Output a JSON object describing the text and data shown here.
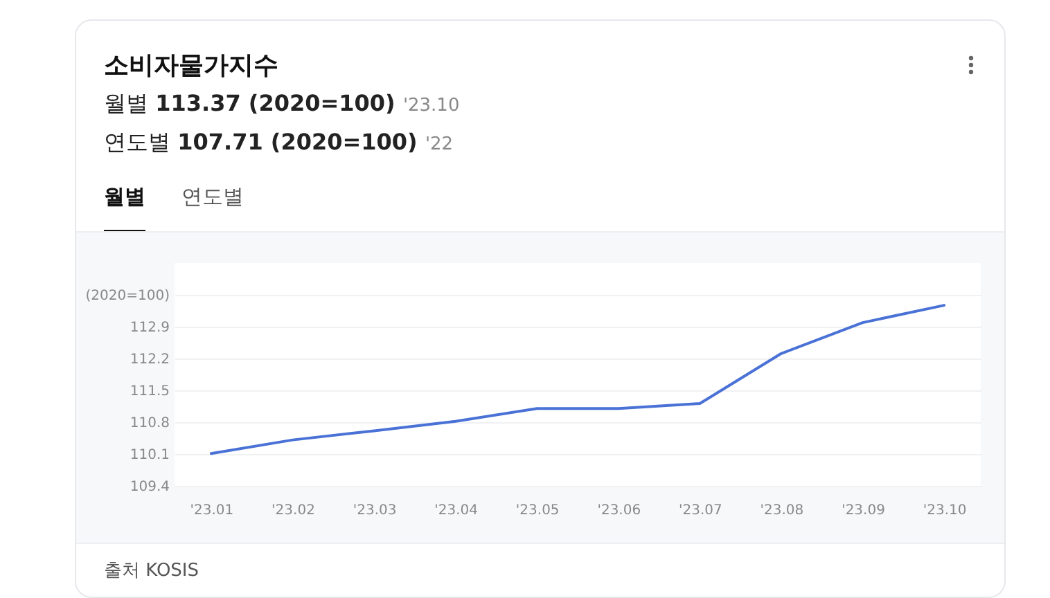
{
  "chart_data": {
    "type": "line",
    "title": "소비자물가지수",
    "subtitle": "월별 113.37 (2020=100) '23.10",
    "annotations": [
      "연도별 107.71 (2020=100) '22",
      "월별",
      "연도별",
      "출처 KOSIS"
    ],
    "categories": [
      "'23.01",
      "'23.02",
      "'23.03",
      "'23.04",
      "'23.05",
      "'23.06",
      "'23.07",
      "'23.08",
      "'23.09",
      "'23.10"
    ],
    "series": [
      {
        "color": "#4a72d6",
        "values": [
          110.11,
          110.41,
          110.61,
          110.82,
          111.1,
          111.1,
          111.21,
          112.31,
          112.99,
          113.37
        ]
      }
    ],
    "ylim": [
      109.4,
      114.3
    ],
    "yticks": [
      109.4,
      110.1,
      110.8,
      111.5,
      112.2,
      112.9,
      {
        "value": 113.6,
        "label": "(2020=100)"
      }
    ],
    "grid": "y",
    "marker": "none",
    "line_style": "solid"
  }
}
